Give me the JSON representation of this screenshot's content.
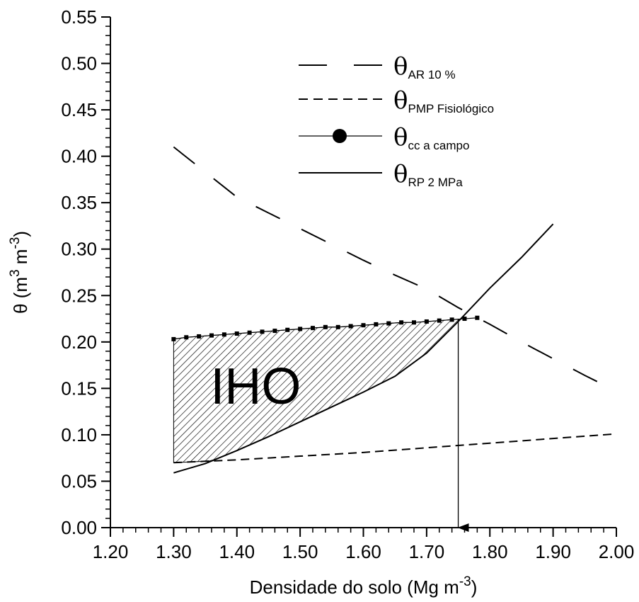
{
  "chart_data": {
    "type": "line",
    "xlabel_main": "Densidade do solo (Mg m",
    "xlabel_sup": "-3",
    "xlabel_close": ")",
    "ylabel_main": "θ (m",
    "ylabel_sup1": "3",
    "ylabel_mid": " m",
    "ylabel_sup2": "-3",
    "ylabel_close": ")",
    "xlim": [
      1.2,
      2.0
    ],
    "ylim": [
      0.0,
      0.55
    ],
    "xticks": [
      1.2,
      1.3,
      1.4,
      1.5,
      1.6,
      1.7,
      1.8,
      1.9,
      2.0
    ],
    "yticks": [
      0.0,
      0.05,
      0.1,
      0.15,
      0.2,
      0.25,
      0.3,
      0.35,
      0.4,
      0.45,
      0.5,
      0.55
    ],
    "xminor_step": 0.02,
    "yminor_step": 0.01,
    "legend_position": "top-right",
    "series": [
      {
        "symbol": "θ",
        "sub": "AR 10 %",
        "style": "long-dash",
        "x": [
          1.3,
          1.35,
          1.4,
          1.45,
          1.5,
          1.55,
          1.6,
          1.65,
          1.7,
          1.75,
          1.8,
          1.85,
          1.9,
          1.95,
          2.0
        ],
        "y": [
          0.41,
          0.383,
          0.356,
          0.339,
          0.322,
          0.305,
          0.288,
          0.272,
          0.257,
          0.237,
          0.219,
          0.2,
          0.182,
          0.164,
          0.147
        ]
      },
      {
        "symbol": "θ",
        "sub": "PMP Fisiológico",
        "style": "short-dash",
        "x": [
          1.3,
          1.4,
          1.5,
          1.6,
          1.7,
          1.8,
          1.9,
          2.0
        ],
        "y": [
          0.07,
          0.073,
          0.077,
          0.081,
          0.086,
          0.091,
          0.096,
          0.101
        ]
      },
      {
        "symbol": "θ",
        "sub": "cc a campo",
        "style": "line-marker",
        "x": [
          1.3,
          1.32,
          1.34,
          1.36,
          1.38,
          1.4,
          1.42,
          1.44,
          1.46,
          1.48,
          1.5,
          1.52,
          1.54,
          1.56,
          1.58,
          1.6,
          1.62,
          1.64,
          1.66,
          1.68,
          1.7,
          1.72,
          1.74,
          1.76,
          1.78
        ],
        "y": [
          0.203,
          0.205,
          0.206,
          0.207,
          0.208,
          0.209,
          0.21,
          0.211,
          0.212,
          0.213,
          0.214,
          0.215,
          0.216,
          0.216,
          0.217,
          0.218,
          0.219,
          0.22,
          0.221,
          0.221,
          0.222,
          0.223,
          0.224,
          0.225,
          0.226
        ]
      },
      {
        "symbol": "θ",
        "sub": "RP 2 MPa",
        "style": "solid",
        "x": [
          1.3,
          1.35,
          1.4,
          1.45,
          1.5,
          1.55,
          1.6,
          1.65,
          1.7,
          1.75,
          1.8,
          1.85,
          1.9
        ],
        "y": [
          0.059,
          0.069,
          0.083,
          0.098,
          0.114,
          0.13,
          0.146,
          0.163,
          0.188,
          0.222,
          0.258,
          0.291,
          0.327
        ]
      }
    ],
    "region": {
      "label": "IHO",
      "x_start": 1.3,
      "upper_ref": "cc a campo",
      "lower_ref": [
        "PMP Fisiológico",
        "RP 2 MPa"
      ],
      "intersection_x": 1.75
    },
    "arrow": {
      "x": 1.75,
      "y_from": 0.225,
      "y_to": 0.0
    }
  }
}
